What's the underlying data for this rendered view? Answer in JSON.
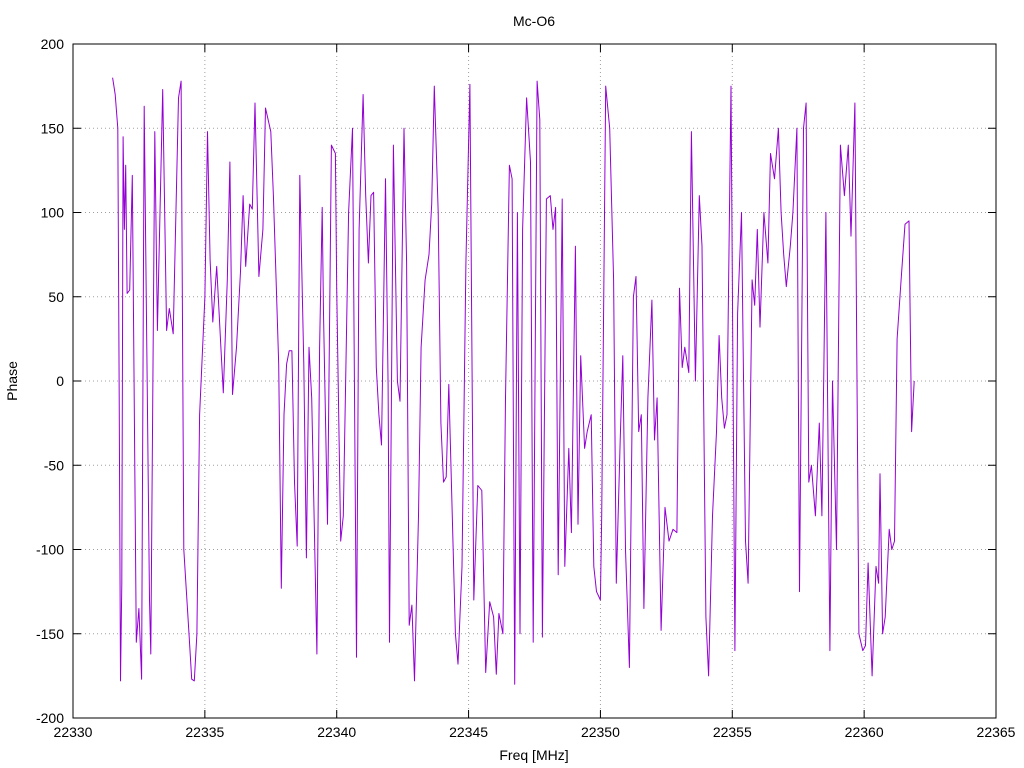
{
  "chart_data": {
    "type": "line",
    "title": "Mc-O6",
    "xlabel": "Freq [MHz]",
    "ylabel": "Phase",
    "xlim": [
      22330,
      22365
    ],
    "ylim": [
      -200,
      200
    ],
    "xticks": [
      22330,
      22335,
      22340,
      22345,
      22350,
      22355,
      22360,
      22365
    ],
    "yticks": [
      -200,
      -150,
      -100,
      -50,
      0,
      50,
      100,
      150,
      200
    ],
    "grid": true,
    "line_color": "#9400d3",
    "series": [
      {
        "points": [
          [
            22331.5,
            180
          ],
          [
            22331.6,
            170
          ],
          [
            22331.7,
            150
          ],
          [
            22331.75,
            -10
          ],
          [
            22331.8,
            -178
          ],
          [
            22331.85,
            -120
          ],
          [
            22331.9,
            145
          ],
          [
            22331.95,
            90
          ],
          [
            22332.0,
            128
          ],
          [
            22332.05,
            52
          ],
          [
            22332.15,
            54
          ],
          [
            22332.25,
            122
          ],
          [
            22332.4,
            -155
          ],
          [
            22332.5,
            -135
          ],
          [
            22332.6,
            -177
          ],
          [
            22332.7,
            163
          ],
          [
            22332.8,
            20
          ],
          [
            22332.9,
            -130
          ],
          [
            22332.95,
            -162
          ],
          [
            22333.1,
            148
          ],
          [
            22333.2,
            30
          ],
          [
            22333.4,
            173
          ],
          [
            22333.55,
            30
          ],
          [
            22333.65,
            43
          ],
          [
            22333.8,
            28
          ],
          [
            22334.0,
            168
          ],
          [
            22334.1,
            178
          ],
          [
            22334.2,
            -100
          ],
          [
            22334.4,
            -150
          ],
          [
            22334.5,
            -177
          ],
          [
            22334.6,
            -178
          ],
          [
            22334.7,
            -150
          ],
          [
            22334.8,
            -20
          ],
          [
            22335.0,
            50
          ],
          [
            22335.1,
            148
          ],
          [
            22335.2,
            72
          ],
          [
            22335.3,
            35
          ],
          [
            22335.45,
            68
          ],
          [
            22335.6,
            22
          ],
          [
            22335.7,
            -7
          ],
          [
            22335.85,
            60
          ],
          [
            22335.95,
            130
          ],
          [
            22336.05,
            -8
          ],
          [
            22336.2,
            20
          ],
          [
            22336.35,
            65
          ],
          [
            22336.45,
            110
          ],
          [
            22336.55,
            68
          ],
          [
            22336.7,
            105
          ],
          [
            22336.8,
            102
          ],
          [
            22336.9,
            165
          ],
          [
            22337.05,
            62
          ],
          [
            22337.2,
            90
          ],
          [
            22337.3,
            162
          ],
          [
            22337.5,
            148
          ],
          [
            22337.6,
            110
          ],
          [
            22337.7,
            60
          ],
          [
            22337.8,
            10
          ],
          [
            22337.9,
            -123
          ],
          [
            22338.0,
            -20
          ],
          [
            22338.1,
            10
          ],
          [
            22338.2,
            18
          ],
          [
            22338.3,
            18
          ],
          [
            22338.4,
            -60
          ],
          [
            22338.5,
            -98
          ],
          [
            22338.6,
            122
          ],
          [
            22338.75,
            10
          ],
          [
            22338.85,
            -105
          ],
          [
            22338.95,
            20
          ],
          [
            22339.05,
            -10
          ],
          [
            22339.25,
            -162
          ],
          [
            22339.35,
            20
          ],
          [
            22339.45,
            103
          ],
          [
            22339.5,
            40
          ],
          [
            22339.65,
            -85
          ],
          [
            22339.8,
            140
          ],
          [
            22339.95,
            135
          ],
          [
            22340.0,
            55
          ],
          [
            22340.15,
            -95
          ],
          [
            22340.25,
            -80
          ],
          [
            22340.45,
            100
          ],
          [
            22340.6,
            150
          ],
          [
            22340.75,
            -164
          ],
          [
            22340.85,
            90
          ],
          [
            22341.0,
            170
          ],
          [
            22341.1,
            110
          ],
          [
            22341.2,
            70
          ],
          [
            22341.3,
            110
          ],
          [
            22341.4,
            112
          ],
          [
            22341.5,
            8
          ],
          [
            22341.6,
            -20
          ],
          [
            22341.7,
            -38
          ],
          [
            22341.85,
            120
          ],
          [
            22341.95,
            -3
          ],
          [
            22342.0,
            -155
          ],
          [
            22342.15,
            140
          ],
          [
            22342.3,
            0
          ],
          [
            22342.4,
            -12
          ],
          [
            22342.55,
            150
          ],
          [
            22342.65,
            70
          ],
          [
            22342.75,
            -145
          ],
          [
            22342.85,
            -133
          ],
          [
            22342.95,
            -178
          ],
          [
            22343.1,
            -80
          ],
          [
            22343.2,
            20
          ],
          [
            22343.35,
            60
          ],
          [
            22343.5,
            75
          ],
          [
            22343.6,
            105
          ],
          [
            22343.7,
            175
          ],
          [
            22343.85,
            100
          ],
          [
            22343.95,
            -25
          ],
          [
            22344.05,
            -60
          ],
          [
            22344.15,
            -57
          ],
          [
            22344.25,
            -2
          ],
          [
            22344.5,
            -150
          ],
          [
            22344.6,
            -168
          ],
          [
            22344.75,
            -110
          ],
          [
            22344.9,
            70
          ],
          [
            22345.05,
            176
          ],
          [
            22345.2,
            -130
          ],
          [
            22345.35,
            -62
          ],
          [
            22345.5,
            -65
          ],
          [
            22345.65,
            -173
          ],
          [
            22345.8,
            -131
          ],
          [
            22345.95,
            -140
          ],
          [
            22346.05,
            -174
          ],
          [
            22346.15,
            -138
          ],
          [
            22346.3,
            -150
          ],
          [
            22346.4,
            -10
          ],
          [
            22346.55,
            128
          ],
          [
            22346.65,
            120
          ],
          [
            22346.75,
            -180
          ],
          [
            22346.85,
            100
          ],
          [
            22346.95,
            -150
          ],
          [
            22347.05,
            90
          ],
          [
            22347.2,
            168
          ],
          [
            22347.35,
            130
          ],
          [
            22347.45,
            -155
          ],
          [
            22347.6,
            178
          ],
          [
            22347.7,
            155
          ],
          [
            22347.8,
            -152
          ],
          [
            22347.95,
            108
          ],
          [
            22348.1,
            110
          ],
          [
            22348.2,
            90
          ],
          [
            22348.3,
            103
          ],
          [
            22348.4,
            -115
          ],
          [
            22348.55,
            108
          ],
          [
            22348.65,
            -110
          ],
          [
            22348.8,
            -40
          ],
          [
            22348.9,
            -90
          ],
          [
            22349.05,
            80
          ],
          [
            22349.15,
            -85
          ],
          [
            22349.25,
            15
          ],
          [
            22349.4,
            -40
          ],
          [
            22349.5,
            -30
          ],
          [
            22349.65,
            -20
          ],
          [
            22349.75,
            -110
          ],
          [
            22349.85,
            -125
          ],
          [
            22350.0,
            -130
          ],
          [
            22350.05,
            -80
          ],
          [
            22350.2,
            175
          ],
          [
            22350.35,
            150
          ],
          [
            22350.5,
            60
          ],
          [
            22350.6,
            -120
          ],
          [
            22350.75,
            -35
          ],
          [
            22350.85,
            15
          ],
          [
            22350.95,
            -100
          ],
          [
            22351.1,
            -170
          ],
          [
            22351.25,
            50
          ],
          [
            22351.35,
            62
          ],
          [
            22351.45,
            -30
          ],
          [
            22351.55,
            -20
          ],
          [
            22351.65,
            -135
          ],
          [
            22351.8,
            -10
          ],
          [
            22351.95,
            48
          ],
          [
            22352.05,
            -35
          ],
          [
            22352.15,
            -10
          ],
          [
            22352.3,
            -148
          ],
          [
            22352.45,
            -75
          ],
          [
            22352.6,
            -95
          ],
          [
            22352.75,
            -88
          ],
          [
            22352.9,
            -90
          ],
          [
            22353.0,
            55
          ],
          [
            22353.1,
            8
          ],
          [
            22353.2,
            20
          ],
          [
            22353.35,
            5
          ],
          [
            22353.45,
            148
          ],
          [
            22353.6,
            0
          ],
          [
            22353.75,
            110
          ],
          [
            22353.85,
            80
          ],
          [
            22354.0,
            -140
          ],
          [
            22354.1,
            -175
          ],
          [
            22354.25,
            -80
          ],
          [
            22354.4,
            -30
          ],
          [
            22354.5,
            27
          ],
          [
            22354.6,
            -10
          ],
          [
            22354.7,
            -28
          ],
          [
            22354.8,
            -20
          ],
          [
            22354.95,
            175
          ],
          [
            22355.1,
            -160
          ],
          [
            22355.2,
            40
          ],
          [
            22355.35,
            100
          ],
          [
            22355.5,
            -95
          ],
          [
            22355.6,
            -120
          ],
          [
            22355.75,
            60
          ],
          [
            22355.85,
            45
          ],
          [
            22355.95,
            90
          ],
          [
            22356.05,
            32
          ],
          [
            22356.2,
            100
          ],
          [
            22356.35,
            70
          ],
          [
            22356.45,
            135
          ],
          [
            22356.6,
            120
          ],
          [
            22356.75,
            150
          ],
          [
            22356.85,
            100
          ],
          [
            22356.95,
            75
          ],
          [
            22357.05,
            56
          ],
          [
            22357.2,
            80
          ],
          [
            22357.3,
            100
          ],
          [
            22357.45,
            150
          ],
          [
            22357.55,
            -125
          ],
          [
            22357.7,
            150
          ],
          [
            22357.8,
            165
          ],
          [
            22357.9,
            -60
          ],
          [
            22358.0,
            -50
          ],
          [
            22358.15,
            -80
          ],
          [
            22358.3,
            -25
          ],
          [
            22358.4,
            -80
          ],
          [
            22358.55,
            100
          ],
          [
            22358.7,
            -160
          ],
          [
            22358.8,
            0
          ],
          [
            22358.95,
            -100
          ],
          [
            22359.1,
            140
          ],
          [
            22359.25,
            110
          ],
          [
            22359.4,
            140
          ],
          [
            22359.5,
            86
          ],
          [
            22359.65,
            165
          ],
          [
            22359.8,
            -150
          ],
          [
            22359.95,
            -160
          ],
          [
            22360.05,
            -157
          ],
          [
            22360.15,
            -108
          ],
          [
            22360.3,
            -175
          ],
          [
            22360.45,
            -110
          ],
          [
            22360.55,
            -120
          ],
          [
            22360.6,
            -55
          ],
          [
            22360.7,
            -150
          ],
          [
            22360.8,
            -140
          ],
          [
            22360.95,
            -88
          ],
          [
            22361.05,
            -100
          ],
          [
            22361.15,
            -95
          ],
          [
            22361.25,
            25
          ],
          [
            22361.4,
            60
          ],
          [
            22361.55,
            93
          ],
          [
            22361.7,
            95
          ],
          [
            22361.8,
            -30
          ],
          [
            22361.9,
            0
          ]
        ]
      }
    ]
  }
}
